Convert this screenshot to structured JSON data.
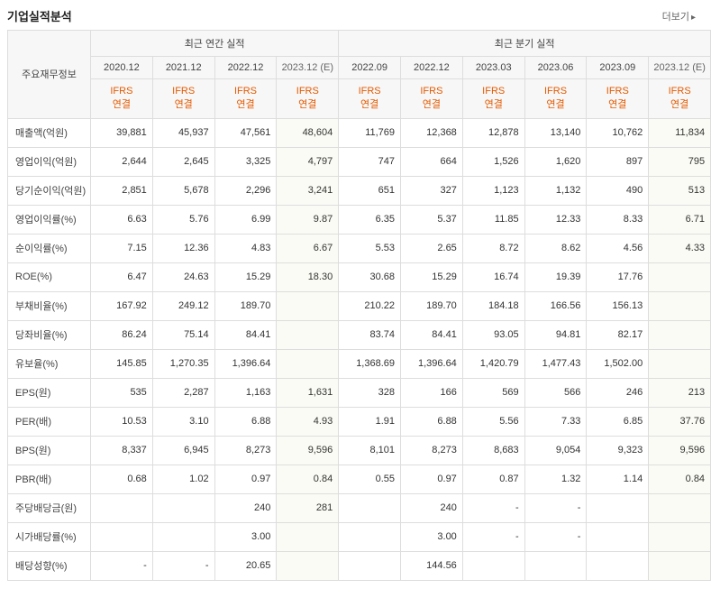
{
  "title": "기업실적분석",
  "more_link": "더보기",
  "groups": [
    {
      "label": "최근 연간 실적",
      "span": 4
    },
    {
      "label": "최근 분기 실적",
      "span": 6
    }
  ],
  "row_header_label": "주요재무정보",
  "periods": [
    {
      "label": "2020.12",
      "est": false
    },
    {
      "label": "2021.12",
      "est": false
    },
    {
      "label": "2022.12",
      "est": false
    },
    {
      "label": "2023.12 (E)",
      "est": true
    },
    {
      "label": "2022.09",
      "est": false
    },
    {
      "label": "2022.12",
      "est": false
    },
    {
      "label": "2023.03",
      "est": false
    },
    {
      "label": "2023.06",
      "est": false
    },
    {
      "label": "2023.09",
      "est": false
    },
    {
      "label": "2023.12 (E)",
      "est": true
    }
  ],
  "ifrs_label": "IFRS\n연결",
  "rows": [
    {
      "label": "매출액(억원)",
      "vals": [
        "39,881",
        "45,937",
        "47,561",
        "48,604",
        "11,769",
        "12,368",
        "12,878",
        "13,140",
        "10,762",
        "11,834"
      ]
    },
    {
      "label": "영업이익(억원)",
      "vals": [
        "2,644",
        "2,645",
        "3,325",
        "4,797",
        "747",
        "664",
        "1,526",
        "1,620",
        "897",
        "795"
      ]
    },
    {
      "label": "당기순이익(억원)",
      "vals": [
        "2,851",
        "5,678",
        "2,296",
        "3,241",
        "651",
        "327",
        "1,123",
        "1,132",
        "490",
        "513"
      ]
    },
    {
      "label": "영업이익률(%)",
      "vals": [
        "6.63",
        "5.76",
        "6.99",
        "9.87",
        "6.35",
        "5.37",
        "11.85",
        "12.33",
        "8.33",
        "6.71"
      ]
    },
    {
      "label": "순이익률(%)",
      "vals": [
        "7.15",
        "12.36",
        "4.83",
        "6.67",
        "5.53",
        "2.65",
        "8.72",
        "8.62",
        "4.56",
        "4.33"
      ]
    },
    {
      "label": "ROE(%)",
      "vals": [
        "6.47",
        "24.63",
        "15.29",
        "18.30",
        "30.68",
        "15.29",
        "16.74",
        "19.39",
        "17.76",
        ""
      ]
    },
    {
      "label": "부채비율(%)",
      "vals": [
        "167.92",
        "249.12",
        "189.70",
        "",
        "210.22",
        "189.70",
        "184.18",
        "166.56",
        "156.13",
        ""
      ]
    },
    {
      "label": "당좌비율(%)",
      "vals": [
        "86.24",
        "75.14",
        "84.41",
        "",
        "83.74",
        "84.41",
        "93.05",
        "94.81",
        "82.17",
        ""
      ]
    },
    {
      "label": "유보율(%)",
      "vals": [
        "145.85",
        "1,270.35",
        "1,396.64",
        "",
        "1,368.69",
        "1,396.64",
        "1,420.79",
        "1,477.43",
        "1,502.00",
        ""
      ]
    },
    {
      "label": "EPS(원)",
      "vals": [
        "535",
        "2,287",
        "1,163",
        "1,631",
        "328",
        "166",
        "569",
        "566",
        "246",
        "213"
      ]
    },
    {
      "label": "PER(배)",
      "vals": [
        "10.53",
        "3.10",
        "6.88",
        "4.93",
        "1.91",
        "6.88",
        "5.56",
        "7.33",
        "6.85",
        "37.76"
      ]
    },
    {
      "label": "BPS(원)",
      "vals": [
        "8,337",
        "6,945",
        "8,273",
        "9,596",
        "8,101",
        "8,273",
        "8,683",
        "9,054",
        "9,323",
        "9,596"
      ]
    },
    {
      "label": "PBR(배)",
      "vals": [
        "0.68",
        "1.02",
        "0.97",
        "0.84",
        "0.55",
        "0.97",
        "0.87",
        "1.32",
        "1.14",
        "0.84"
      ]
    },
    {
      "label": "주당배당금(원)",
      "vals": [
        "",
        "",
        "240",
        "281",
        "",
        "240",
        "-",
        "-",
        "",
        ""
      ]
    },
    {
      "label": "시가배당률(%)",
      "vals": [
        "",
        "",
        "3.00",
        "",
        "",
        "3.00",
        "-",
        "-",
        "",
        ""
      ]
    },
    {
      "label": "배당성향(%)",
      "vals": [
        "-",
        "-",
        "20.65",
        "",
        "",
        "144.56",
        "",
        "",
        "",
        ""
      ]
    }
  ],
  "est_cols": [
    3,
    9
  ],
  "colors": {
    "accent": "#e55a00",
    "border": "#ddd",
    "header_bg": "#f7f7f7",
    "est_bg": "#fbfbf5"
  }
}
